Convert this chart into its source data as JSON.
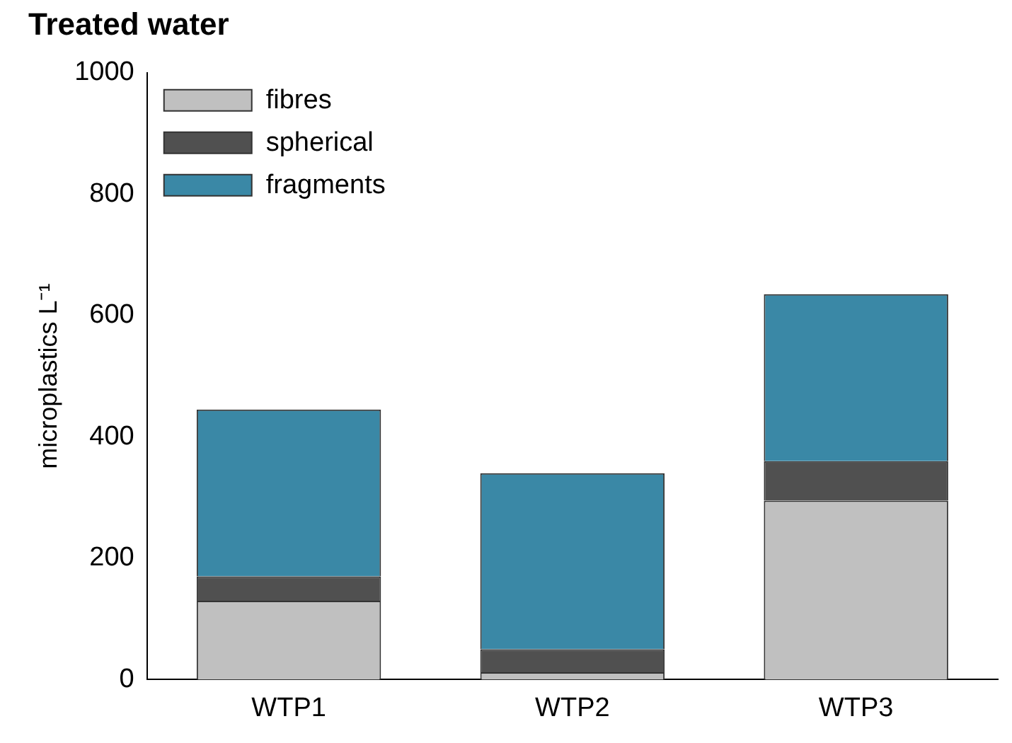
{
  "chart_data": {
    "type": "bar",
    "title": "Treated water",
    "ylabel": "microplastics L⁻¹",
    "categories": [
      "WTP1",
      "WTP2",
      "WTP3"
    ],
    "stacked": true,
    "ylim": [
      0,
      1000
    ],
    "yticks": [
      0,
      200,
      400,
      600,
      800,
      1000
    ],
    "grid": false,
    "legend": "top left",
    "series": [
      {
        "name": "fibres",
        "color": "#c0c0c0",
        "values": [
          130,
          12,
          295
        ]
      },
      {
        "name": "spherical",
        "color": "#505050",
        "values": [
          40,
          38,
          65
        ]
      },
      {
        "name": "fragments",
        "color": "#3a88a6",
        "values": [
          275,
          290,
          275
        ]
      }
    ]
  }
}
